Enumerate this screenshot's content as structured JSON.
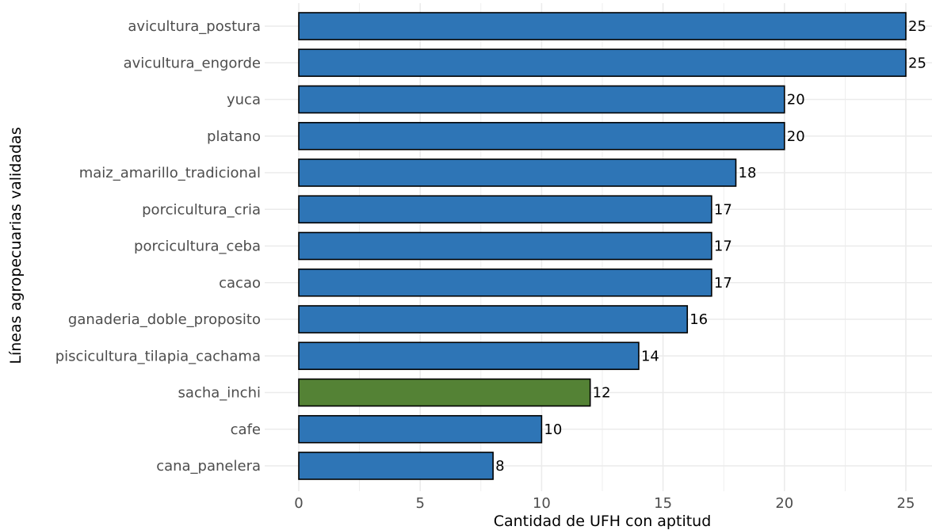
{
  "chart_data": {
    "type": "bar",
    "orientation": "horizontal",
    "title": "",
    "xlabel": "Cantidad de UFH con aptitud",
    "ylabel": "Líneas agropecuarias validadas",
    "xlim": [
      0,
      25
    ],
    "x_ticks": [
      0,
      5,
      10,
      15,
      20,
      25
    ],
    "grid": true,
    "legend": "none",
    "colors": {
      "default": "#2e75b6",
      "highlight": "#548235",
      "edge": "#000000",
      "grid": "#ebebeb"
    },
    "categories": [
      "avicultura_postura",
      "avicultura_engorde",
      "yuca",
      "platano",
      "maiz_amarillo_tradicional",
      "porcicultura_cria",
      "porcicultura_ceba",
      "cacao",
      "ganaderia_doble_proposito",
      "piscicultura_tilapia_cachama",
      "sacha_inchi",
      "cafe",
      "cana_panelera"
    ],
    "values": [
      25,
      25,
      20,
      20,
      18,
      17,
      17,
      17,
      16,
      14,
      12,
      10,
      8
    ],
    "highlight": [
      "sacha_inchi"
    ]
  }
}
